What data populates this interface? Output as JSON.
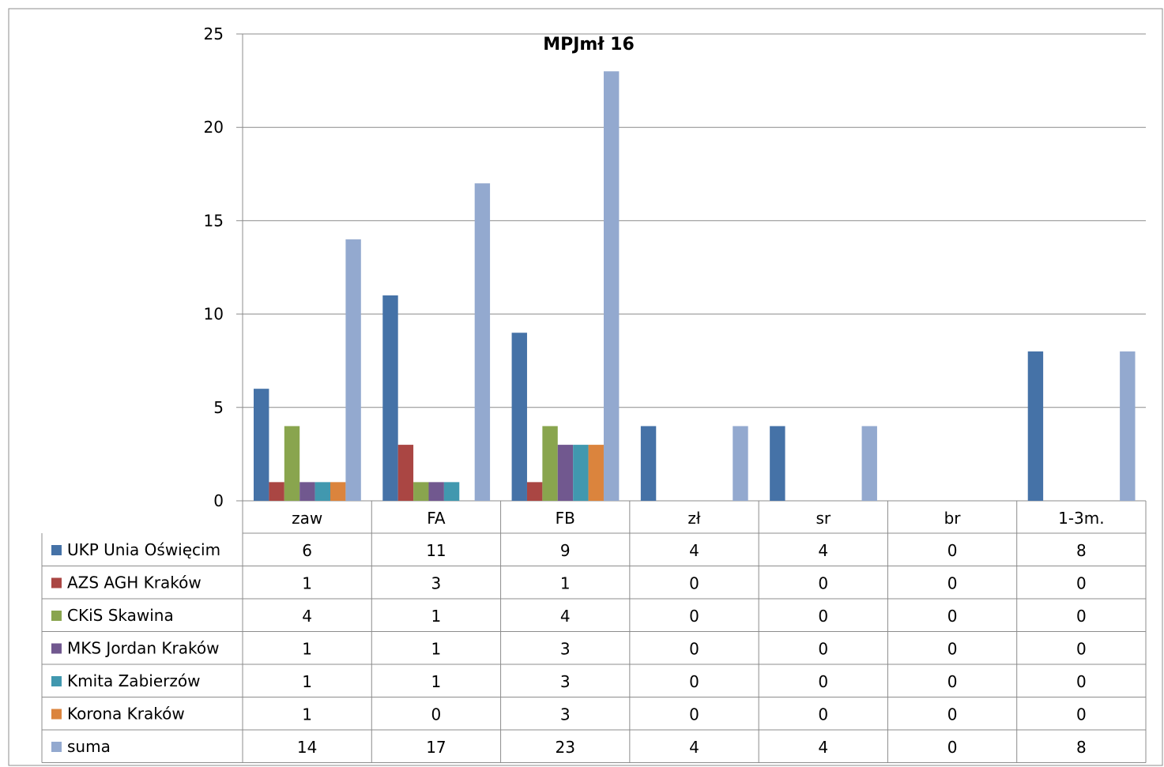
{
  "chart_data": {
    "type": "bar",
    "title": "MPJmł 16",
    "categories": [
      "zaw",
      "FA",
      "FB",
      "zł",
      "sr",
      "br",
      "1-3m."
    ],
    "ylim": [
      0,
      25
    ],
    "yticks": [
      0,
      5,
      10,
      15,
      20,
      25
    ],
    "grid": true,
    "legend": "data-table-left",
    "series": [
      {
        "name": "UKP Unia Oświęcim",
        "color": "#4572A7",
        "values": [
          6,
          11,
          9,
          4,
          4,
          0,
          8
        ]
      },
      {
        "name": "AZS AGH Kraków",
        "color": "#AA4643",
        "values": [
          1,
          3,
          1,
          0,
          0,
          0,
          0
        ]
      },
      {
        "name": "CKiS Skawina",
        "color": "#89A54E",
        "values": [
          4,
          1,
          4,
          0,
          0,
          0,
          0
        ]
      },
      {
        "name": "MKS Jordan Kraków",
        "color": "#71588F",
        "values": [
          1,
          1,
          3,
          0,
          0,
          0,
          0
        ]
      },
      {
        "name": "Kmita Zabierzów",
        "color": "#4198AF",
        "values": [
          1,
          1,
          3,
          0,
          0,
          0,
          0
        ]
      },
      {
        "name": "Korona Kraków",
        "color": "#DB843D",
        "values": [
          1,
          0,
          3,
          0,
          0,
          0,
          0
        ]
      },
      {
        "name": "suma",
        "color": "#93A9CF",
        "values": [
          14,
          17,
          23,
          4,
          4,
          0,
          8
        ]
      }
    ]
  }
}
